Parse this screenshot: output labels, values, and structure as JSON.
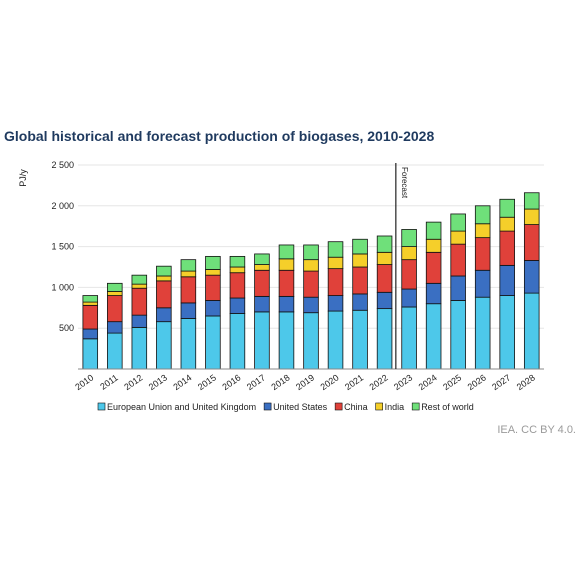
{
  "title": "Global historical and forecast production of biogases, 2010-2028",
  "credit": "IEA. CC BY 4.0.",
  "chart_data": {
    "type": "bar",
    "stacked": true,
    "ylabel": "PJ/y",
    "ylim": [
      0,
      2500
    ],
    "yticks": [
      500,
      1000,
      1500,
      2000,
      2500
    ],
    "ytick_labels": [
      "500",
      "1 000",
      "1 500",
      "2 000",
      "2 500"
    ],
    "grid": true,
    "legend_position": "bottom",
    "forecast_label": "Forecast",
    "forecast_after": "2022",
    "categories": [
      "2010",
      "2011",
      "2012",
      "2013",
      "2014",
      "2015",
      "2016",
      "2017",
      "2018",
      "2019",
      "2020",
      "2021",
      "2022",
      "2023",
      "2024",
      "2025",
      "2026",
      "2027",
      "2028"
    ],
    "series": [
      {
        "name": "European Union and United Kingdom",
        "color": "#4dc8ea",
        "values": [
          370,
          440,
          510,
          580,
          620,
          650,
          680,
          700,
          700,
          690,
          710,
          720,
          740,
          760,
          800,
          840,
          880,
          900,
          930
        ]
      },
      {
        "name": "United States",
        "color": "#3a6fc2",
        "values": [
          120,
          140,
          150,
          170,
          190,
          190,
          190,
          190,
          190,
          190,
          190,
          200,
          200,
          220,
          250,
          300,
          330,
          370,
          400
        ]
      },
      {
        "name": "China",
        "color": "#e0413a",
        "values": [
          290,
          320,
          330,
          330,
          320,
          310,
          310,
          320,
          320,
          320,
          330,
          330,
          340,
          360,
          380,
          390,
          400,
          420,
          440
        ]
      },
      {
        "name": "India",
        "color": "#f5cf2a",
        "values": [
          40,
          50,
          50,
          60,
          70,
          70,
          70,
          70,
          140,
          140,
          140,
          160,
          150,
          160,
          160,
          160,
          170,
          170,
          190
        ]
      },
      {
        "name": "Rest of world",
        "color": "#6fe07a",
        "values": [
          80,
          100,
          110,
          120,
          140,
          160,
          130,
          130,
          170,
          180,
          190,
          180,
          200,
          210,
          210,
          210,
          220,
          220,
          200
        ]
      }
    ]
  }
}
